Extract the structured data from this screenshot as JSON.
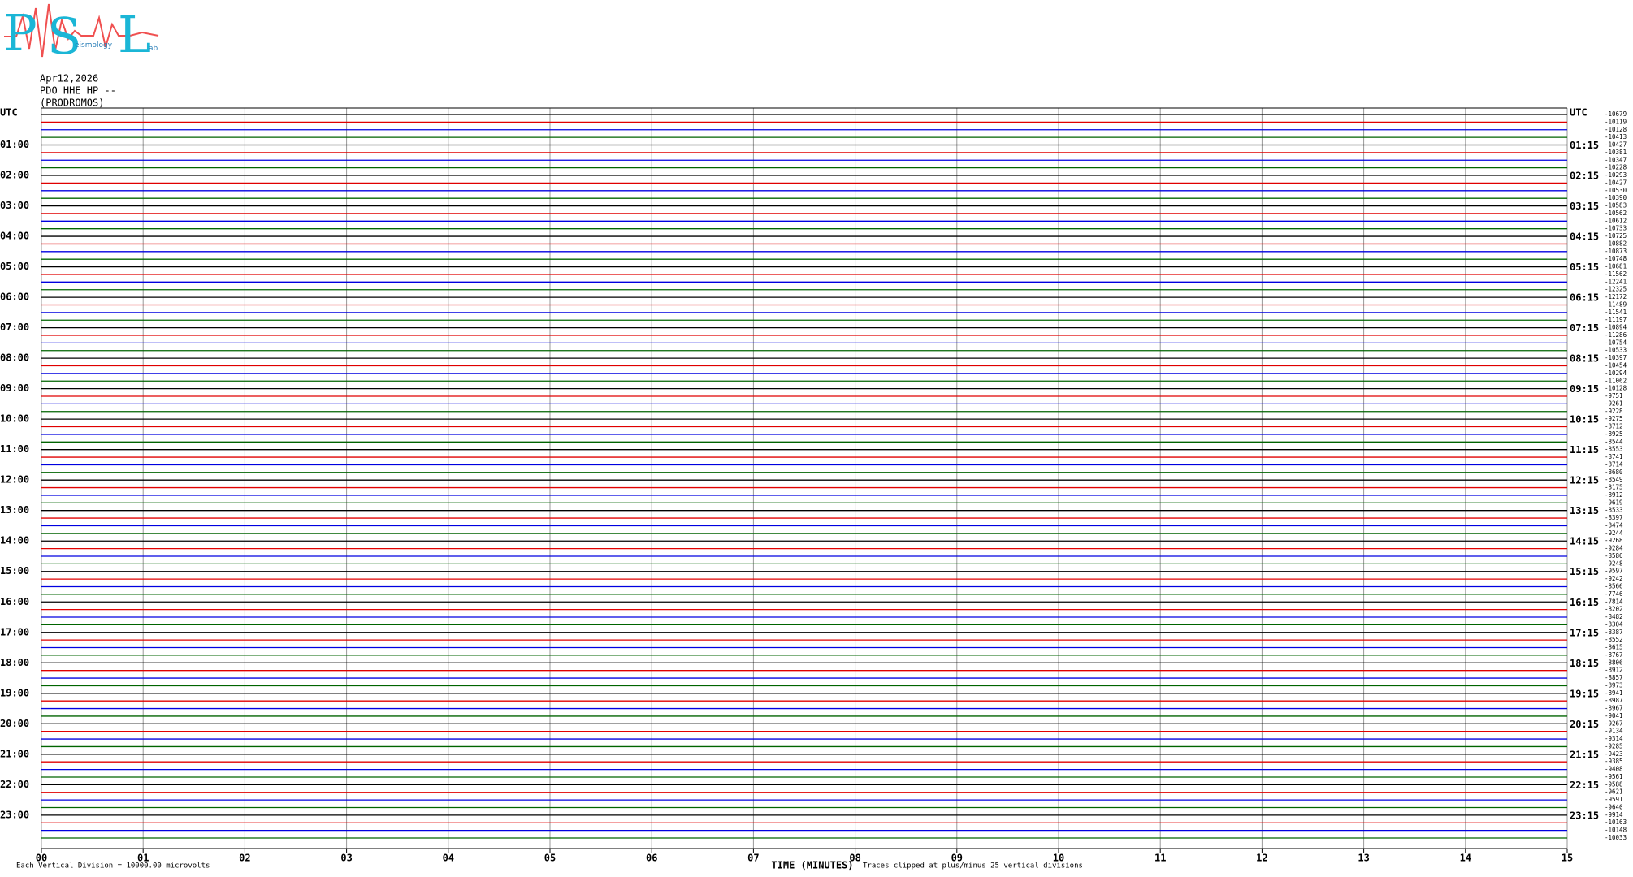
{
  "logo": {
    "letters": [
      "P",
      "S",
      "L"
    ],
    "fragments": [
      "eismology",
      "ab"
    ]
  },
  "header": {
    "date": "Apr12,2026",
    "station": "PDO HHE HP --",
    "location": "(PRODROMOS)"
  },
  "left_labels": [
    "UTC",
    "01:00",
    "02:00",
    "03:00",
    "04:00",
    "05:00",
    "06:00",
    "07:00",
    "08:00",
    "09:00",
    "10:00",
    "11:00",
    "12:00",
    "13:00",
    "14:00",
    "15:00",
    "16:00",
    "17:00",
    "18:00",
    "19:00",
    "20:00",
    "21:00",
    "22:00",
    "23:00"
  ],
  "right_labels": [
    "UTC",
    "01:15",
    "02:15",
    "03:15",
    "04:15",
    "05:15",
    "06:15",
    "07:15",
    "08:15",
    "09:15",
    "10:15",
    "11:15",
    "12:15",
    "13:15",
    "14:15",
    "15:15",
    "16:15",
    "17:15",
    "18:15",
    "19:15",
    "20:15",
    "21:15",
    "22:15",
    "23:15"
  ],
  "trace_offsets": [
    "-10679",
    "-10119",
    "-10128",
    "-10413",
    "-10427",
    "-10381",
    "-10347",
    "-10228",
    "-10293",
    "-10427",
    "-10530",
    "-10390",
    "-10583",
    "-10562",
    "-10612",
    "-10733",
    "-10725",
    "-10882",
    "-10873",
    "-10748",
    "-10681",
    "-11562",
    "-12241",
    "-12325",
    "-12172",
    "-11489",
    "-11541",
    "-11197",
    "-10894",
    "-11286",
    "-10754",
    "-10533",
    "-10397",
    "-10454",
    "-10294",
    "-11062",
    "-10128",
    "-9751",
    "-9261",
    "-9228",
    "-9275",
    "-8712",
    "-8925",
    "-8544",
    "-8553",
    "-8741",
    "-8714",
    "-8680",
    "-8549",
    "-8175",
    "-8912",
    "-9619",
    "-8533",
    "-8397",
    "-8474",
    "-9244",
    "-9268",
    "-9284",
    "-8586",
    "-9248",
    "-9597",
    "-9242",
    "-8566",
    "-7746",
    "-7814",
    "-8202",
    "-8482",
    "-8304",
    "-8387",
    "-8552",
    "-8615",
    "-8767",
    "-8806",
    "-8912",
    "-8857",
    "-8973",
    "-8941",
    "-8987",
    "-8967",
    "-9041",
    "-9267",
    "-9134",
    "-9314",
    "-9285",
    "-9423",
    "-9385",
    "-9408",
    "-9561",
    "-9588",
    "-9621",
    "-9591",
    "-9640",
    "-9914",
    "-10163",
    "-10148",
    "-10033"
  ],
  "trace_colors": [
    "#000000",
    "#e00000",
    "#0000e0",
    "#006400"
  ],
  "x_ticks": [
    "00",
    "01",
    "02",
    "03",
    "04",
    "05",
    "06",
    "07",
    "08",
    "09",
    "10",
    "11",
    "12",
    "13",
    "14",
    "15"
  ],
  "footer": {
    "scale_note": "Each Vertical Division = 10000.00 microvolts",
    "axis_title": "TIME (MINUTES)",
    "clip_note": "Traces clipped at plus/minus 25 vertical divisions"
  }
}
